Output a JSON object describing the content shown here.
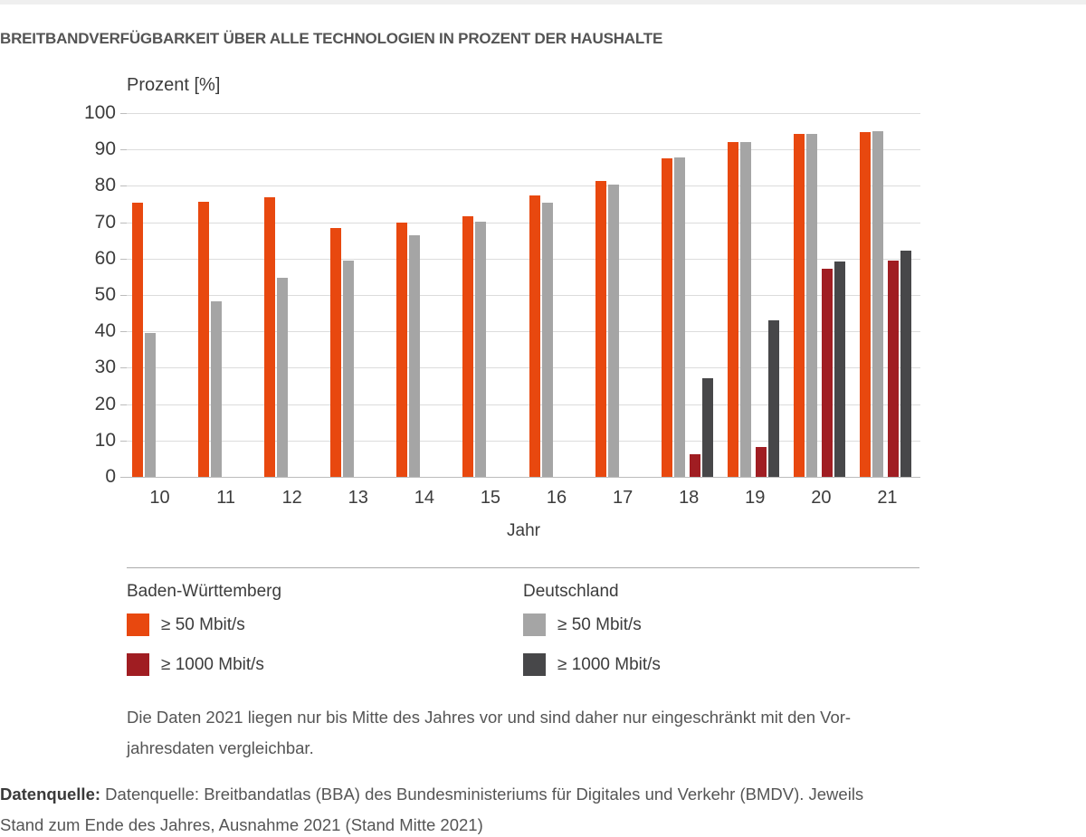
{
  "title": "BREITBANDVERFÜGBARKEIT ÜBER ALLE TECHNOLOGIEN IN PROZENT DER HAUSHALTE",
  "chart_data": {
    "type": "bar",
    "title": "Breitbandverfügbarkeit über alle Technologien in Prozent der Haushalte",
    "y_axis_title": "Prozent [%]",
    "x_axis_title": "Jahr",
    "categories": [
      "10",
      "11",
      "12",
      "13",
      "14",
      "15",
      "16",
      "17",
      "18",
      "19",
      "20",
      "21"
    ],
    "ylim": [
      0,
      100
    ],
    "y_tick_step": 10,
    "grid": true,
    "legend_position": "bottom",
    "series": [
      {
        "name": "Baden-Württemberg ≥ 50 Mbit/s",
        "color": "#e8480f",
        "values": [
          75.5,
          75.7,
          76.8,
          68.5,
          69.9,
          71.6,
          77.4,
          81.3,
          87.5,
          92.0,
          94.3,
          94.8
        ]
      },
      {
        "name": "Deutschland ≥ 50 Mbit/s",
        "color": "#a5a5a5",
        "values": [
          39.5,
          48.2,
          54.8,
          59.5,
          66.4,
          70.1,
          75.5,
          80.3,
          87.9,
          92.0,
          94.3,
          95.1
        ]
      },
      {
        "name": "Baden-Württemberg ≥ 1000 Mbit/s",
        "color": "#a01d22",
        "values": [
          null,
          null,
          null,
          null,
          null,
          null,
          null,
          null,
          6.1,
          8.1,
          57.3,
          59.4
        ]
      },
      {
        "name": "Deutschland ≥ 1000 Mbit/s",
        "color": "#474749",
        "values": [
          null,
          null,
          null,
          null,
          null,
          null,
          null,
          null,
          27.2,
          43.0,
          59.1,
          62.2
        ]
      }
    ]
  },
  "legend": {
    "groups": [
      {
        "title": "Baden-Württemberg",
        "items": [
          {
            "label": "≥ 50 Mbit/s",
            "color": "#e8480f"
          },
          {
            "label": "≥ 1000 Mbit/s",
            "color": "#a01d22"
          }
        ]
      },
      {
        "title": "Deutschland",
        "items": [
          {
            "label": "≥ 50 Mbit/s",
            "color": "#a5a5a5"
          },
          {
            "label": "≥ 1000 Mbit/s",
            "color": "#474749"
          }
        ]
      }
    ]
  },
  "footnote": {
    "line1": "Die Daten 2021 liegen nur bis Mitte des Jahres vor und sind daher nur eingeschränkt mit den Vor-",
    "line2": "jahresdaten vergleichbar."
  },
  "source": {
    "label": "Datenquelle:",
    "line1": " Datenquelle: Breitbandatlas (BBA) des Bundesministeriums für Digitales und Verkehr (BMDV). Jeweils",
    "line2": "Stand zum Ende des Jahres, Ausnahme 2021 (Stand Mitte 2021)"
  },
  "colors": {
    "bw_50": "#e8480f",
    "bw_1000": "#a01d22",
    "de_50": "#a5a5a5",
    "de_1000": "#474749",
    "gridline": "#dcdcdc",
    "axis": "#bcbcbc",
    "title_text": "#545454",
    "top_strip": "#efefef"
  }
}
